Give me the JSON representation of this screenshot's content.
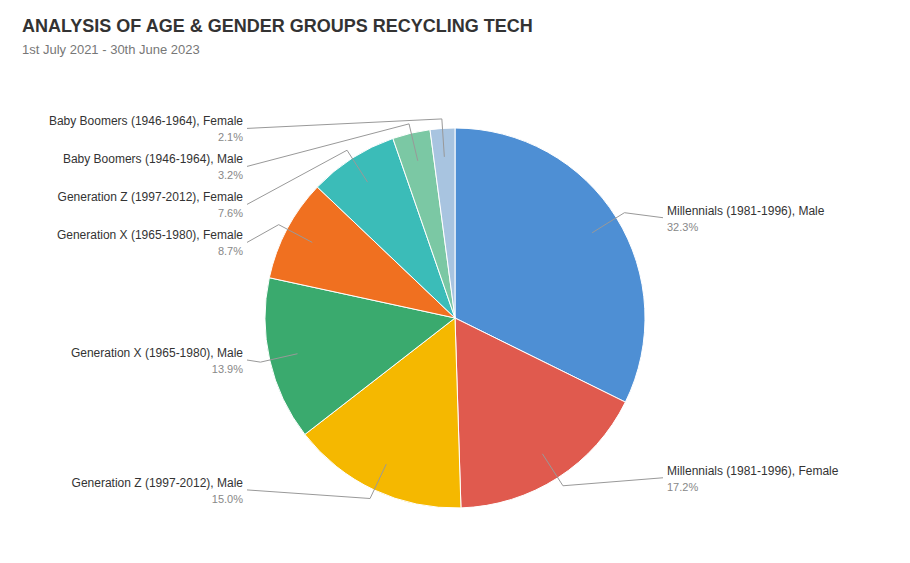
{
  "chart_data": {
    "type": "pie",
    "title": "ANALYSIS OF AGE & GENDER GROUPS RECYCLING TECH",
    "subtitle": "1st July 2021 - 30th June 2023",
    "categories": [
      "Millennials (1981-1996), Male",
      "Millennials (1981-1996), Female",
      "Generation Z (1997-2012), Male",
      "Generation X (1965-1980), Male",
      "Generation X (1965-1980), Female",
      "Generation Z (1997-2012), Female",
      "Baby Boomers (1946-1964), Male",
      "Baby Boomers (1946-1964), Female"
    ],
    "values": [
      32.3,
      17.2,
      15.0,
      13.9,
      8.7,
      7.6,
      3.2,
      2.1
    ],
    "value_labels": [
      "32.3%",
      "17.2%",
      "15.0%",
      "13.9%",
      "8.7%",
      "7.6%",
      "3.2%",
      "2.1%"
    ],
    "colors": [
      "#4e8fd4",
      "#e05a4e",
      "#f5b800",
      "#3aaa6e",
      "#f07020",
      "#3bbcb8",
      "#7bc8a4",
      "#a8c4e0"
    ],
    "data_labels": true
  }
}
